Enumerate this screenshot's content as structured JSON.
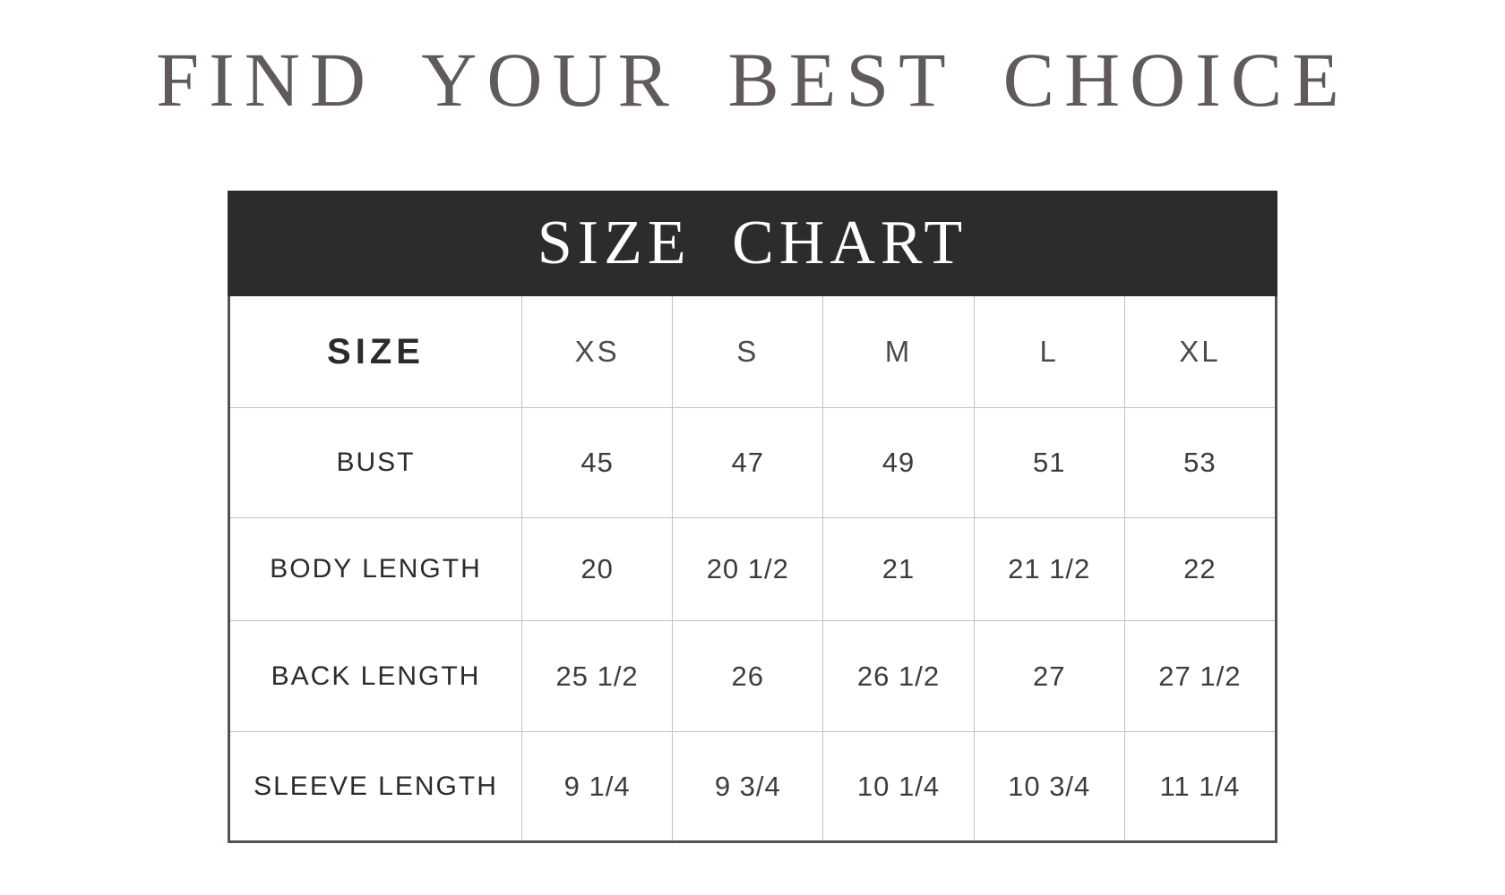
{
  "colors": {
    "page-bg": "#ffffff",
    "title-color": "#615a5c",
    "banner-bg": "#2e2b2c",
    "banner-text": "#ffffff",
    "table-border": "#585153",
    "grid-line": "#c3c1c2",
    "header-text": "#4b4b4b",
    "corner-text": "#2b2b2b",
    "label-text": "#2c2a2b",
    "value-text": "#3d3b3c"
  },
  "header": {
    "title": "FIND YOUR BEST CHOICE"
  },
  "chart_data": {
    "type": "table",
    "title": "SIZE CHART",
    "corner_label": "SIZE",
    "columns": [
      "XS",
      "S",
      "M",
      "L",
      "XL"
    ],
    "rows": [
      {
        "label": "BUST",
        "values": [
          "45",
          "47",
          "49",
          "51",
          "53"
        ]
      },
      {
        "label": "BODY LENGTH",
        "values": [
          "20",
          "20 1/2",
          "21",
          "21 1/2",
          "22"
        ]
      },
      {
        "label": "BACK LENGTH",
        "values": [
          "25 1/2",
          "26",
          "26 1/2",
          "27",
          "27 1/2"
        ]
      },
      {
        "label": "SLEEVE LENGTH",
        "values": [
          "9 1/4",
          "9 3/4",
          "10 1/4",
          "10 3/4",
          "11 1/4"
        ]
      }
    ]
  }
}
